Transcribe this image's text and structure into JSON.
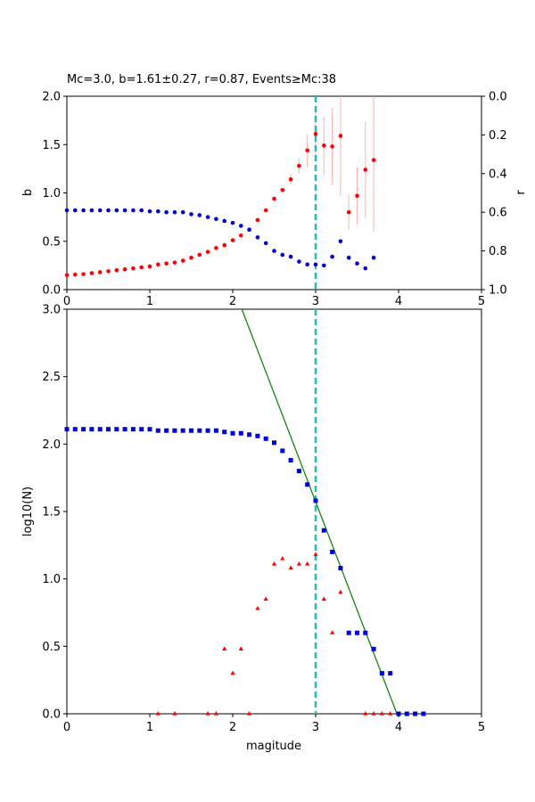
{
  "figure": {
    "top_title": "Mc=3.0, b=1.61±0.27, r=0.87, Events≥Mc:38"
  },
  "chart_data": [
    {
      "id": "top",
      "type": "scatter",
      "title": "Mc=3.0, b=1.61±0.27, r=0.87, Events≥Mc:38",
      "xlabel": "",
      "ylabel": "b",
      "y2label": "r",
      "xlim": [
        0,
        5
      ],
      "ylim": [
        0,
        2
      ],
      "y2lim": [
        1,
        0
      ],
      "y2_inverted": true,
      "xticks": [
        "0",
        "1",
        "2",
        "3",
        "4",
        "5"
      ],
      "yticks": [
        "0.0",
        "0.5",
        "1.0",
        "1.5",
        "2.0"
      ],
      "y2ticks": [
        "0.0",
        "0.2",
        "0.4",
        "0.6",
        "0.8",
        "1.0"
      ],
      "mc_line": 3.0,
      "colors": {
        "b": "#ff0000",
        "r": "#0000cc",
        "err": "#ffb3b3",
        "mc": "#20c0b0"
      },
      "series": [
        {
          "name": "b",
          "axis": "left",
          "x": [
            0.0,
            0.1,
            0.2,
            0.3,
            0.4,
            0.5,
            0.6,
            0.7,
            0.8,
            0.9,
            1.0,
            1.1,
            1.2,
            1.3,
            1.4,
            1.5,
            1.6,
            1.7,
            1.8,
            1.9,
            2.0,
            2.1,
            2.2,
            2.3,
            2.4,
            2.5,
            2.6,
            2.7,
            2.8,
            2.9,
            3.0,
            3.1,
            3.2,
            3.3,
            3.4,
            3.5,
            3.6,
            3.7
          ],
          "y": [
            0.15,
            0.155,
            0.16,
            0.17,
            0.18,
            0.19,
            0.2,
            0.21,
            0.22,
            0.23,
            0.24,
            0.26,
            0.27,
            0.28,
            0.3,
            0.33,
            0.36,
            0.39,
            0.43,
            0.46,
            0.51,
            0.56,
            0.62,
            0.72,
            0.82,
            0.94,
            1.03,
            1.14,
            1.28,
            1.44,
            1.61,
            1.49,
            1.48,
            1.59,
            0.8,
            0.97,
            1.24,
            1.34
          ],
          "err": [
            0,
            0,
            0,
            0,
            0,
            0,
            0,
            0,
            0,
            0,
            0,
            0,
            0,
            0,
            0,
            0,
            0,
            0,
            0,
            0,
            0,
            0,
            0,
            0,
            0,
            0,
            0,
            0.05,
            0.08,
            0.17,
            0.27,
            0.3,
            0.4,
            0.62,
            0.18,
            0.3,
            0.5,
            0.74
          ]
        },
        {
          "name": "r",
          "axis": "right",
          "x": [
            0.0,
            0.1,
            0.2,
            0.3,
            0.4,
            0.5,
            0.6,
            0.7,
            0.8,
            0.9,
            1.0,
            1.1,
            1.2,
            1.3,
            1.4,
            1.5,
            1.6,
            1.7,
            1.8,
            1.9,
            2.0,
            2.1,
            2.2,
            2.3,
            2.4,
            2.5,
            2.6,
            2.7,
            2.8,
            2.9,
            3.0,
            3.1,
            3.2,
            3.3,
            3.4,
            3.5,
            3.6,
            3.7
          ],
          "y": [
            0.59,
            0.59,
            0.59,
            0.59,
            0.59,
            0.59,
            0.59,
            0.59,
            0.59,
            0.59,
            0.595,
            0.595,
            0.6,
            0.6,
            0.6,
            0.61,
            0.615,
            0.625,
            0.635,
            0.645,
            0.655,
            0.67,
            0.69,
            0.73,
            0.76,
            0.8,
            0.82,
            0.83,
            0.855,
            0.87,
            0.87,
            0.875,
            0.83,
            0.75,
            0.835,
            0.865,
            0.89,
            0.835
          ]
        }
      ]
    },
    {
      "id": "bottom",
      "type": "scatter",
      "title": "",
      "xlabel": "magitude",
      "ylabel": "log10(N)",
      "xlim": [
        0,
        5
      ],
      "ylim": [
        0,
        3
      ],
      "xticks": [
        "0",
        "1",
        "2",
        "3",
        "4",
        "5"
      ],
      "yticks": [
        "0.0",
        "0.5",
        "1.0",
        "1.5",
        "2.0",
        "2.5",
        "3.0"
      ],
      "mc_line": 3.0,
      "fit_line": {
        "x": [
          2.11,
          3.98
        ],
        "y": [
          3.0,
          0.0
        ],
        "color": "#008000"
      },
      "colors": {
        "cumulative": "#0000dd",
        "noncumulative": "#ff0000",
        "mc": "#20c0b0"
      },
      "series": [
        {
          "name": "cumulative",
          "marker": "square",
          "x": [
            0.0,
            0.1,
            0.2,
            0.3,
            0.4,
            0.5,
            0.6,
            0.7,
            0.8,
            0.9,
            1.0,
            1.1,
            1.2,
            1.3,
            1.4,
            1.5,
            1.6,
            1.7,
            1.8,
            1.9,
            2.0,
            2.1,
            2.2,
            2.3,
            2.4,
            2.5,
            2.6,
            2.7,
            2.8,
            2.9,
            3.0,
            3.1,
            3.2,
            3.3,
            3.4,
            3.5,
            3.6,
            3.7,
            3.8,
            3.9,
            4.0,
            4.1,
            4.2,
            4.3
          ],
          "y": [
            2.11,
            2.11,
            2.11,
            2.11,
            2.11,
            2.11,
            2.11,
            2.11,
            2.11,
            2.11,
            2.11,
            2.1,
            2.1,
            2.1,
            2.1,
            2.1,
            2.1,
            2.1,
            2.1,
            2.09,
            2.08,
            2.08,
            2.07,
            2.06,
            2.04,
            2.01,
            1.95,
            1.88,
            1.8,
            1.7,
            1.58,
            1.36,
            1.2,
            1.08,
            0.6,
            0.6,
            0.6,
            0.48,
            0.3,
            0.3,
            0.0,
            0.0,
            0.0,
            0.0
          ]
        },
        {
          "name": "noncumulative",
          "marker": "triangle",
          "x": [
            1.1,
            1.3,
            1.7,
            1.8,
            1.9,
            2.0,
            2.1,
            2.2,
            2.3,
            2.4,
            2.5,
            2.6,
            2.7,
            2.8,
            2.9,
            3.0,
            3.1,
            3.2,
            3.3,
            3.6,
            3.7,
            3.8,
            3.9
          ],
          "y": [
            0.0,
            0.0,
            0.0,
            0.0,
            0.48,
            0.3,
            0.48,
            0.0,
            0.78,
            0.85,
            1.11,
            1.15,
            1.08,
            1.11,
            1.11,
            1.18,
            0.85,
            0.6,
            0.9,
            0.0,
            0.0,
            0.0,
            0.0
          ]
        }
      ]
    }
  ]
}
